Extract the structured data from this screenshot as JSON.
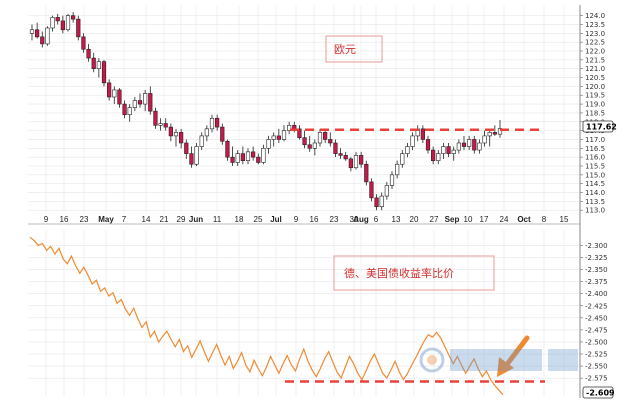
{
  "colors": {
    "up_candle": "#ffffff",
    "down_candle": "#c8184a",
    "candle_outline": "#222222",
    "resistance_line": "#e8403a",
    "yield_line": "#f08a30",
    "arrow": "#f08a30",
    "annotation_text": "#d03030",
    "grid": "#e6e6e6"
  },
  "chart_data": [
    {
      "type": "candlestick",
      "annotation": "欧元",
      "ylim": [
        112.9,
        124.6
      ],
      "yticks": [
        "124.0",
        "123.5",
        "123.0",
        "122.5",
        "122.0",
        "121.5",
        "121.0",
        "120.5",
        "120.0",
        "119.5",
        "119.0",
        "118.5",
        "118.0",
        "117.5",
        "117.0",
        "116.5",
        "116.0",
        "115.5",
        "115.0",
        "114.5",
        "114.0",
        "113.5",
        "113.0"
      ],
      "last_value_label": "117.62",
      "resistance_level": 117.55,
      "x_ticks": [
        "9",
        "16",
        "23",
        "May",
        "7",
        "14",
        "21",
        "29",
        "Jun",
        "11",
        "18",
        "25",
        "Jul",
        "9",
        "16",
        "23",
        "30",
        "Aug",
        "6",
        "13",
        "20",
        "27",
        "Sep",
        "10",
        "17",
        "24",
        "Oct",
        "8",
        "15"
      ],
      "candles": [
        {
          "o": 123.0,
          "h": 123.5,
          "l": 122.6,
          "c": 123.2
        },
        {
          "o": 123.2,
          "h": 123.6,
          "l": 122.7,
          "c": 122.8
        },
        {
          "o": 122.8,
          "h": 123.1,
          "l": 122.2,
          "c": 122.4
        },
        {
          "o": 122.4,
          "h": 123.4,
          "l": 122.3,
          "c": 123.3
        },
        {
          "o": 123.3,
          "h": 124.0,
          "l": 123.1,
          "c": 123.9
        },
        {
          "o": 123.9,
          "h": 124.1,
          "l": 123.5,
          "c": 123.7
        },
        {
          "o": 123.7,
          "h": 124.0,
          "l": 123.0,
          "c": 123.2
        },
        {
          "o": 123.2,
          "h": 124.1,
          "l": 123.1,
          "c": 124.0
        },
        {
          "o": 124.0,
          "h": 124.2,
          "l": 123.6,
          "c": 123.8
        },
        {
          "o": 123.8,
          "h": 124.0,
          "l": 122.6,
          "c": 122.8
        },
        {
          "o": 122.8,
          "h": 123.0,
          "l": 121.9,
          "c": 122.1
        },
        {
          "o": 122.1,
          "h": 122.4,
          "l": 121.4,
          "c": 121.6
        },
        {
          "o": 121.6,
          "h": 121.9,
          "l": 120.8,
          "c": 121.0
        },
        {
          "o": 121.0,
          "h": 121.6,
          "l": 120.5,
          "c": 121.4
        },
        {
          "o": 121.4,
          "h": 121.5,
          "l": 120.0,
          "c": 120.2
        },
        {
          "o": 120.2,
          "h": 120.4,
          "l": 119.2,
          "c": 119.4
        },
        {
          "o": 119.4,
          "h": 120.0,
          "l": 119.0,
          "c": 119.8
        },
        {
          "o": 119.8,
          "h": 119.9,
          "l": 118.8,
          "c": 119.0
        },
        {
          "o": 119.0,
          "h": 119.2,
          "l": 118.2,
          "c": 118.4
        },
        {
          "o": 118.4,
          "h": 119.0,
          "l": 118.0,
          "c": 118.8
        },
        {
          "o": 118.8,
          "h": 119.4,
          "l": 118.6,
          "c": 119.2
        },
        {
          "o": 119.2,
          "h": 119.6,
          "l": 118.8,
          "c": 119.0
        },
        {
          "o": 119.0,
          "h": 119.8,
          "l": 118.6,
          "c": 119.6
        },
        {
          "o": 119.6,
          "h": 120.0,
          "l": 118.4,
          "c": 118.6
        },
        {
          "o": 118.6,
          "h": 118.8,
          "l": 117.6,
          "c": 117.8
        },
        {
          "o": 117.8,
          "h": 118.2,
          "l": 117.5,
          "c": 117.9
        },
        {
          "o": 117.9,
          "h": 118.2,
          "l": 117.5,
          "c": 117.7
        },
        {
          "o": 117.7,
          "h": 117.9,
          "l": 116.9,
          "c": 117.2
        },
        {
          "o": 117.2,
          "h": 117.6,
          "l": 116.6,
          "c": 117.4
        },
        {
          "o": 117.4,
          "h": 117.6,
          "l": 116.5,
          "c": 116.8
        },
        {
          "o": 116.8,
          "h": 117.0,
          "l": 115.9,
          "c": 116.2
        },
        {
          "o": 116.2,
          "h": 116.6,
          "l": 115.4,
          "c": 115.6
        },
        {
          "o": 115.6,
          "h": 116.8,
          "l": 115.5,
          "c": 116.6
        },
        {
          "o": 116.6,
          "h": 117.4,
          "l": 116.4,
          "c": 117.2
        },
        {
          "o": 117.2,
          "h": 117.8,
          "l": 116.9,
          "c": 117.6
        },
        {
          "o": 117.6,
          "h": 118.4,
          "l": 117.4,
          "c": 118.2
        },
        {
          "o": 118.2,
          "h": 118.4,
          "l": 117.5,
          "c": 117.7
        },
        {
          "o": 117.7,
          "h": 117.9,
          "l": 116.7,
          "c": 116.9
        },
        {
          "o": 116.9,
          "h": 117.0,
          "l": 115.8,
          "c": 116.0
        },
        {
          "o": 116.0,
          "h": 116.6,
          "l": 115.5,
          "c": 115.7
        },
        {
          "o": 115.7,
          "h": 116.4,
          "l": 115.5,
          "c": 116.2
        },
        {
          "o": 116.2,
          "h": 116.6,
          "l": 115.6,
          "c": 115.8
        },
        {
          "o": 115.8,
          "h": 116.5,
          "l": 115.6,
          "c": 116.3
        },
        {
          "o": 116.3,
          "h": 116.6,
          "l": 115.8,
          "c": 116.0
        },
        {
          "o": 116.0,
          "h": 116.2,
          "l": 115.6,
          "c": 115.7
        },
        {
          "o": 115.7,
          "h": 116.7,
          "l": 115.6,
          "c": 116.5
        },
        {
          "o": 116.5,
          "h": 117.2,
          "l": 116.2,
          "c": 117.0
        },
        {
          "o": 117.0,
          "h": 117.4,
          "l": 116.6,
          "c": 117.2
        },
        {
          "o": 117.2,
          "h": 117.6,
          "l": 116.8,
          "c": 117.0
        },
        {
          "o": 117.0,
          "h": 117.8,
          "l": 116.9,
          "c": 117.5
        },
        {
          "o": 117.5,
          "h": 118.0,
          "l": 117.3,
          "c": 117.8
        },
        {
          "o": 117.8,
          "h": 118.0,
          "l": 117.4,
          "c": 117.6
        },
        {
          "o": 117.6,
          "h": 117.8,
          "l": 117.0,
          "c": 117.1
        },
        {
          "o": 117.1,
          "h": 117.5,
          "l": 116.5,
          "c": 116.7
        },
        {
          "o": 116.7,
          "h": 117.2,
          "l": 116.3,
          "c": 116.5
        },
        {
          "o": 116.5,
          "h": 117.0,
          "l": 116.1,
          "c": 116.8
        },
        {
          "o": 116.8,
          "h": 117.6,
          "l": 116.6,
          "c": 117.4
        },
        {
          "o": 117.4,
          "h": 117.6,
          "l": 116.8,
          "c": 117.0
        },
        {
          "o": 117.0,
          "h": 117.4,
          "l": 116.6,
          "c": 116.8
        },
        {
          "o": 116.8,
          "h": 117.0,
          "l": 116.0,
          "c": 116.2
        },
        {
          "o": 116.2,
          "h": 116.5,
          "l": 115.9,
          "c": 116.1
        },
        {
          "o": 116.1,
          "h": 116.3,
          "l": 115.8,
          "c": 115.9
        },
        {
          "o": 115.9,
          "h": 116.0,
          "l": 115.2,
          "c": 115.4
        },
        {
          "o": 115.4,
          "h": 116.3,
          "l": 115.3,
          "c": 116.1
        },
        {
          "o": 116.1,
          "h": 116.3,
          "l": 115.4,
          "c": 115.6
        },
        {
          "o": 115.6,
          "h": 115.8,
          "l": 114.4,
          "c": 114.6
        },
        {
          "o": 114.6,
          "h": 114.8,
          "l": 113.5,
          "c": 113.7
        },
        {
          "o": 113.7,
          "h": 113.9,
          "l": 113.0,
          "c": 113.2
        },
        {
          "o": 113.2,
          "h": 114.0,
          "l": 113.0,
          "c": 113.8
        },
        {
          "o": 113.8,
          "h": 114.6,
          "l": 113.6,
          "c": 114.4
        },
        {
          "o": 114.4,
          "h": 115.2,
          "l": 114.2,
          "c": 115.0
        },
        {
          "o": 115.0,
          "h": 115.8,
          "l": 114.8,
          "c": 115.6
        },
        {
          "o": 115.6,
          "h": 116.4,
          "l": 115.4,
          "c": 116.2
        },
        {
          "o": 116.2,
          "h": 116.8,
          "l": 116.0,
          "c": 116.6
        },
        {
          "o": 116.6,
          "h": 117.4,
          "l": 116.4,
          "c": 117.2
        },
        {
          "o": 117.2,
          "h": 117.8,
          "l": 116.9,
          "c": 117.6
        },
        {
          "o": 117.6,
          "h": 117.8,
          "l": 116.8,
          "c": 117.0
        },
        {
          "o": 117.0,
          "h": 117.2,
          "l": 116.2,
          "c": 116.4
        },
        {
          "o": 116.4,
          "h": 116.6,
          "l": 115.6,
          "c": 115.8
        },
        {
          "o": 115.8,
          "h": 116.4,
          "l": 115.6,
          "c": 116.2
        },
        {
          "o": 116.2,
          "h": 116.8,
          "l": 115.9,
          "c": 116.6
        },
        {
          "o": 116.6,
          "h": 116.8,
          "l": 116.0,
          "c": 116.2
        },
        {
          "o": 116.2,
          "h": 116.6,
          "l": 115.8,
          "c": 116.4
        },
        {
          "o": 116.4,
          "h": 117.0,
          "l": 116.2,
          "c": 116.8
        },
        {
          "o": 116.8,
          "h": 117.2,
          "l": 116.4,
          "c": 116.6
        },
        {
          "o": 116.6,
          "h": 117.2,
          "l": 116.4,
          "c": 117.0
        },
        {
          "o": 117.0,
          "h": 117.2,
          "l": 116.2,
          "c": 116.4
        },
        {
          "o": 116.4,
          "h": 117.0,
          "l": 116.2,
          "c": 116.8
        },
        {
          "o": 116.8,
          "h": 117.5,
          "l": 116.6,
          "c": 117.2
        },
        {
          "o": 117.2,
          "h": 117.6,
          "l": 116.6,
          "c": 117.4
        },
        {
          "o": 117.4,
          "h": 117.8,
          "l": 117.2,
          "c": 117.3
        },
        {
          "o": 117.3,
          "h": 118.1,
          "l": 117.1,
          "c": 117.62
        }
      ]
    },
    {
      "type": "line",
      "annotation": "德、美国债收益率比价",
      "ylim": [
        -2.612,
        -2.268
      ],
      "yticks": [
        "-2.300",
        "-2.325",
        "-2.350",
        "-2.375",
        "-2.400",
        "-2.425",
        "-2.450",
        "-2.475",
        "-2.500",
        "-2.525",
        "-2.550",
        "-2.575"
      ],
      "last_value_label": "-2.609",
      "support_level": -2.582,
      "values": [
        -2.283,
        -2.29,
        -2.3,
        -2.296,
        -2.31,
        -2.302,
        -2.318,
        -2.306,
        -2.328,
        -2.338,
        -2.322,
        -2.342,
        -2.358,
        -2.345,
        -2.362,
        -2.38,
        -2.372,
        -2.395,
        -2.388,
        -2.405,
        -2.398,
        -2.42,
        -2.412,
        -2.432,
        -2.445,
        -2.43,
        -2.452,
        -2.47,
        -2.458,
        -2.49,
        -2.478,
        -2.5,
        -2.488,
        -2.478,
        -2.495,
        -2.51,
        -2.495,
        -2.52,
        -2.508,
        -2.532,
        -2.515,
        -2.498,
        -2.52,
        -2.54,
        -2.522,
        -2.505,
        -2.528,
        -2.548,
        -2.53,
        -2.555,
        -2.54,
        -2.522,
        -2.548,
        -2.562,
        -2.538,
        -2.555,
        -2.57,
        -2.552,
        -2.53,
        -2.548,
        -2.565,
        -2.545,
        -2.528,
        -2.548,
        -2.56,
        -2.535,
        -2.515,
        -2.54,
        -2.558,
        -2.572,
        -2.555,
        -2.535,
        -2.52,
        -2.542,
        -2.562,
        -2.575,
        -2.552,
        -2.53,
        -2.545,
        -2.565,
        -2.578,
        -2.56,
        -2.54,
        -2.525,
        -2.545,
        -2.565,
        -2.575,
        -2.558,
        -2.54,
        -2.562,
        -2.578,
        -2.565,
        -2.548,
        -2.532,
        -2.515,
        -2.498,
        -2.485,
        -2.49,
        -2.48,
        -2.492,
        -2.51,
        -2.528,
        -2.545,
        -2.53,
        -2.548,
        -2.565,
        -2.55,
        -2.535,
        -2.555,
        -2.572,
        -2.56,
        -2.578,
        -2.59,
        -2.6,
        -2.609
      ]
    }
  ]
}
